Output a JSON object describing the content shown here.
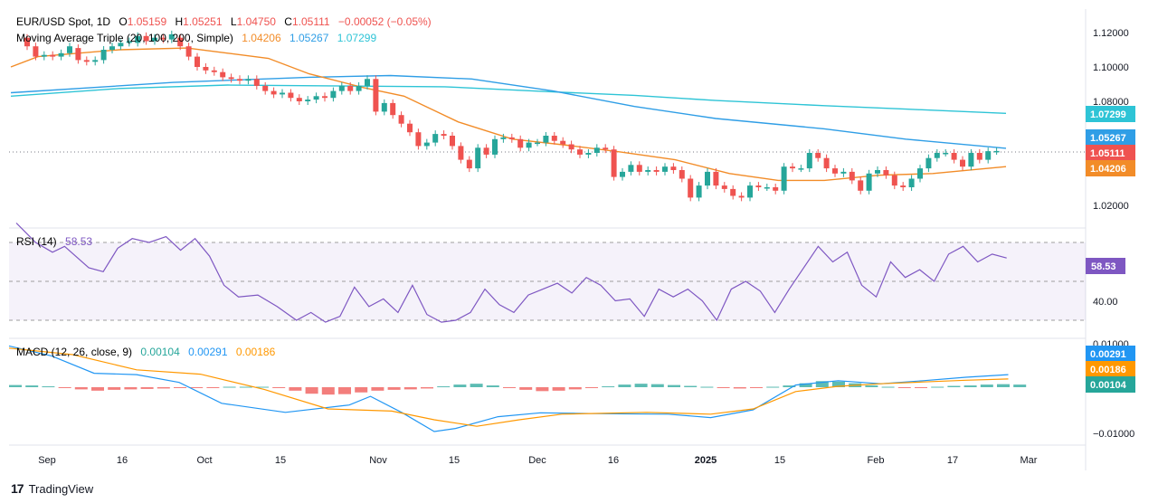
{
  "header": {
    "symbol": "EUR/USD Spot, 1D",
    "o_label": "O",
    "o": "1.05159",
    "h_label": "H",
    "h": "1.05251",
    "l_label": "L",
    "l": "1.04750",
    "c_label": "C",
    "c": "1.05111",
    "change": "−0.00052 (−0.05%)",
    "ma_label": "Moving Average Triple (20, 100, 200, Simple)",
    "ma20": "1.04206",
    "ma100": "1.05267",
    "ma200": "1.07299"
  },
  "rsi": {
    "label": "RSI (14)",
    "value": "58.53",
    "tick": "40.00"
  },
  "macd": {
    "label": "MACD (12, 26, close, 9)",
    "hist": "0.00104",
    "macd": "0.00291",
    "signal": "0.00186",
    "tick_top": "0.01000",
    "tick_bottom": "−0.01000"
  },
  "price_axis": {
    "ticks": [
      "1.12000",
      "1.10000",
      "1.08000",
      "1.02000"
    ],
    "tags": {
      "ma200": "1.07299",
      "ma100": "1.05267",
      "last": "1.05111",
      "ma20": "1.04206"
    }
  },
  "time_axis": {
    "labels": [
      "Sep",
      "16",
      "Oct",
      "15",
      "Nov",
      "15",
      "Dec",
      "16",
      "2025",
      "15",
      "Feb",
      "17",
      "Mar"
    ]
  },
  "footer": {
    "logo": "17",
    "brand": "TradingView"
  },
  "colors": {
    "up": "#26a69a",
    "down": "#ef5350",
    "ma20": "#f28c28",
    "ma100": "#2f9ee6",
    "ma200": "#2ec4d6",
    "rsi": "#7e57c2",
    "macd": "#2196f3",
    "signal": "#ff9800"
  },
  "chart_data": {
    "type": "candlestick",
    "title": "EUR/USD Spot, 1D",
    "ylim": [
      1.01,
      1.125
    ],
    "ma200": [
      [
        0,
        1.083
      ],
      [
        40,
        1.0875
      ],
      [
        80,
        1.0895
      ],
      [
        160,
        1.0885
      ],
      [
        200,
        1.0855
      ],
      [
        230,
        1.0835
      ],
      [
        260,
        1.0805
      ],
      [
        300,
        1.0775
      ],
      [
        330,
        1.0755
      ],
      [
        367,
        1.073
      ]
    ],
    "ma100": [
      [
        0,
        1.085
      ],
      [
        60,
        1.091
      ],
      [
        110,
        1.094
      ],
      [
        140,
        1.095
      ],
      [
        170,
        1.093
      ],
      [
        200,
        1.086
      ],
      [
        230,
        1.077
      ],
      [
        260,
        1.07
      ],
      [
        300,
        1.064
      ],
      [
        330,
        1.058
      ],
      [
        367,
        1.0527
      ]
    ],
    "ma20": [
      [
        0,
        1.1
      ],
      [
        10,
        1.106
      ],
      [
        40,
        1.11
      ],
      [
        65,
        1.111
      ],
      [
        80,
        1.108
      ],
      [
        95,
        1.105
      ],
      [
        110,
        1.096
      ],
      [
        130,
        1.088
      ],
      [
        145,
        1.083
      ],
      [
        165,
        1.068
      ],
      [
        185,
        1.058
      ],
      [
        205,
        1.0545
      ],
      [
        225,
        1.0505
      ],
      [
        245,
        1.046
      ],
      [
        265,
        1.038
      ],
      [
        283,
        1.034
      ],
      [
        300,
        1.034
      ],
      [
        320,
        1.037
      ],
      [
        340,
        1.038
      ],
      [
        367,
        1.042
      ]
    ],
    "rsi": [
      [
        0,
        80
      ],
      [
        8,
        70
      ],
      [
        15,
        65
      ],
      [
        20,
        68
      ],
      [
        30,
        57
      ],
      [
        36,
        55
      ],
      [
        42,
        67
      ],
      [
        48,
        72
      ],
      [
        55,
        70
      ],
      [
        62,
        73
      ],
      [
        68,
        66
      ],
      [
        74,
        72
      ],
      [
        80,
        63
      ],
      [
        86,
        48
      ],
      [
        92,
        42
      ],
      [
        100,
        43
      ],
      [
        108,
        37
      ],
      [
        116,
        30
      ],
      [
        122,
        34
      ],
      [
        128,
        29
      ],
      [
        134,
        32
      ],
      [
        140,
        47
      ],
      [
        146,
        37
      ],
      [
        152,
        41
      ],
      [
        158,
        34
      ],
      [
        164,
        48
      ],
      [
        170,
        33
      ],
      [
        176,
        29
      ],
      [
        182,
        30
      ],
      [
        188,
        34
      ],
      [
        194,
        46
      ],
      [
        200,
        38
      ],
      [
        206,
        34
      ],
      [
        212,
        43
      ],
      [
        218,
        46
      ],
      [
        224,
        49
      ],
      [
        230,
        44
      ],
      [
        236,
        52
      ],
      [
        242,
        48
      ],
      [
        248,
        40
      ],
      [
        254,
        41
      ],
      [
        260,
        32
      ],
      [
        266,
        46
      ],
      [
        272,
        42
      ],
      [
        278,
        46
      ],
      [
        284,
        40
      ],
      [
        290,
        30
      ],
      [
        296,
        46
      ],
      [
        302,
        50
      ],
      [
        308,
        45
      ],
      [
        314,
        34
      ],
      [
        320,
        46
      ],
      [
        326,
        57
      ],
      [
        332,
        68
      ],
      [
        338,
        60
      ],
      [
        344,
        65
      ],
      [
        350,
        48
      ],
      [
        356,
        42
      ],
      [
        362,
        60
      ],
      [
        368,
        52
      ],
      [
        374,
        56
      ],
      [
        380,
        50
      ],
      [
        386,
        64
      ],
      [
        392,
        68
      ],
      [
        398,
        60
      ],
      [
        404,
        64
      ],
      [
        410,
        62
      ]
    ],
    "macd_line": [
      [
        0,
        0.0095
      ],
      [
        20,
        0.0072
      ],
      [
        40,
        0.0032
      ],
      [
        60,
        0.0029
      ],
      [
        80,
        0.0011
      ],
      [
        100,
        -0.0037
      ],
      [
        130,
        -0.0058
      ],
      [
        160,
        -0.0041
      ],
      [
        170,
        -0.0021
      ],
      [
        185,
        -0.0059
      ],
      [
        200,
        -0.0102
      ],
      [
        210,
        -0.0095
      ],
      [
        230,
        -0.0068
      ],
      [
        250,
        -0.0059
      ],
      [
        280,
        -0.0061
      ],
      [
        310,
        -0.0062
      ],
      [
        330,
        -0.007
      ],
      [
        350,
        -0.0052
      ],
      [
        370,
        0.0005
      ],
      [
        390,
        0.0015
      ],
      [
        410,
        0.0008
      ],
      [
        430,
        0.0015
      ],
      [
        450,
        0.0023
      ],
      [
        470,
        0.0029
      ]
    ],
    "signal_line": [
      [
        0,
        0.009
      ],
      [
        30,
        0.0075
      ],
      [
        60,
        0.004
      ],
      [
        90,
        0.003
      ],
      [
        120,
        -0.0005
      ],
      [
        150,
        -0.005
      ],
      [
        180,
        -0.0055
      ],
      [
        200,
        -0.0075
      ],
      [
        220,
        -0.009
      ],
      [
        240,
        -0.0075
      ],
      [
        260,
        -0.0062
      ],
      [
        300,
        -0.0058
      ],
      [
        330,
        -0.0062
      ],
      [
        350,
        -0.005
      ],
      [
        370,
        -0.001
      ],
      [
        390,
        0.0002
      ],
      [
        410,
        0.0008
      ],
      [
        430,
        0.0012
      ],
      [
        450,
        0.0016
      ],
      [
        470,
        0.0019
      ]
    ],
    "histogram": [
      0.0005,
      0.0004,
      0.0002,
      -0.0001,
      -0.0005,
      -0.0008,
      -0.0006,
      -0.0005,
      -0.0004,
      -0.0003,
      -0.0002,
      -0.0001,
      -0.0001,
      0.0001,
      0.0001,
      0.0001,
      -0.0001,
      -0.0008,
      -0.0015,
      -0.0017,
      -0.0016,
      -0.0012,
      -0.0008,
      -0.0006,
      -0.0005,
      -0.0003,
      0.0002,
      0.0006,
      0.0008,
      0.0004,
      -0.0002,
      -0.0006,
      -0.0009,
      -0.0008,
      -0.0005,
      -0.0002,
      0.0002,
      0.0006,
      0.0008,
      0.0007,
      0.0005,
      0.0003,
      0.0001,
      -0.0001,
      -0.0003,
      -0.0002,
      0.0001,
      0.0004,
      0.0009,
      0.0014,
      0.0013,
      0.0009,
      0.0004,
      0.0001,
      -0.0001,
      -0.0001,
      0.0001,
      0.0003,
      0.0004,
      0.0006,
      0.0007,
      0.0006
    ],
    "candles": [
      {
        "x": 0,
        "o": 1.117,
        "c": 1.112
      },
      {
        "x": 1,
        "o": 1.112,
        "c": 1.106
      },
      {
        "x": 2,
        "o": 1.106,
        "c": 1.107
      },
      {
        "x": 3,
        "o": 1.107,
        "c": 1.106
      },
      {
        "x": 4,
        "o": 1.106,
        "c": 1.108
      },
      {
        "x": 5,
        "o": 1.108,
        "c": 1.112
      },
      {
        "x": 6,
        "o": 1.111,
        "c": 1.104
      },
      {
        "x": 7,
        "o": 1.104,
        "c": 1.103
      },
      {
        "x": 8,
        "o": 1.103,
        "c": 1.104
      },
      {
        "x": 9,
        "o": 1.104,
        "c": 1.11
      },
      {
        "x": 10,
        "o": 1.11,
        "c": 1.112
      },
      {
        "x": 11,
        "o": 1.112,
        "c": 1.114
      },
      {
        "x": 12,
        "o": 1.114,
        "c": 1.115
      },
      {
        "x": 13,
        "o": 1.114,
        "c": 1.118
      },
      {
        "x": 14,
        "o": 1.118,
        "c": 1.115
      },
      {
        "x": 15,
        "o": 1.115,
        "c": 1.117
      },
      {
        "x": 16,
        "o": 1.117,
        "c": 1.116
      },
      {
        "x": 17,
        "o": 1.116,
        "c": 1.119
      },
      {
        "x": 18,
        "o": 1.117,
        "c": 1.112
      },
      {
        "x": 19,
        "o": 1.112,
        "c": 1.106
      },
      {
        "x": 20,
        "o": 1.106,
        "c": 1.1
      },
      {
        "x": 21,
        "o": 1.1,
        "c": 1.098
      },
      {
        "x": 22,
        "o": 1.098,
        "c": 1.097
      },
      {
        "x": 23,
        "o": 1.097,
        "c": 1.094
      },
      {
        "x": 24,
        "o": 1.094,
        "c": 1.093
      },
      {
        "x": 25,
        "o": 1.093,
        "c": 1.092
      },
      {
        "x": 26,
        "o": 1.092,
        "c": 1.093
      },
      {
        "x": 27,
        "o": 1.093,
        "c": 1.089
      },
      {
        "x": 28,
        "o": 1.089,
        "c": 1.086
      },
      {
        "x": 29,
        "o": 1.086,
        "c": 1.084
      },
      {
        "x": 30,
        "o": 1.084,
        "c": 1.085
      },
      {
        "x": 31,
        "o": 1.085,
        "c": 1.082
      },
      {
        "x": 32,
        "o": 1.082,
        "c": 1.08
      },
      {
        "x": 33,
        "o": 1.08,
        "c": 1.081
      },
      {
        "x": 34,
        "o": 1.081,
        "c": 1.083
      },
      {
        "x": 35,
        "o": 1.083,
        "c": 1.082
      },
      {
        "x": 36,
        "o": 1.082,
        "c": 1.086
      },
      {
        "x": 37,
        "o": 1.086,
        "c": 1.089
      },
      {
        "x": 38,
        "o": 1.089,
        "c": 1.086
      },
      {
        "x": 39,
        "o": 1.086,
        "c": 1.089
      },
      {
        "x": 40,
        "o": 1.089,
        "c": 1.093
      },
      {
        "x": 41,
        "o": 1.093,
        "c": 1.074
      },
      {
        "x": 42,
        "o": 1.074,
        "c": 1.079
      },
      {
        "x": 43,
        "o": 1.079,
        "c": 1.072
      },
      {
        "x": 44,
        "o": 1.072,
        "c": 1.067
      },
      {
        "x": 45,
        "o": 1.067,
        "c": 1.062
      },
      {
        "x": 46,
        "o": 1.062,
        "c": 1.054
      },
      {
        "x": 47,
        "o": 1.054,
        "c": 1.056
      },
      {
        "x": 48,
        "o": 1.056,
        "c": 1.061
      },
      {
        "x": 49,
        "o": 1.061,
        "c": 1.06
      },
      {
        "x": 50,
        "o": 1.06,
        "c": 1.054
      },
      {
        "x": 51,
        "o": 1.054,
        "c": 1.046
      },
      {
        "x": 52,
        "o": 1.046,
        "c": 1.041
      },
      {
        "x": 53,
        "o": 1.041,
        "c": 1.053
      },
      {
        "x": 54,
        "o": 1.053,
        "c": 1.049
      },
      {
        "x": 55,
        "o": 1.049,
        "c": 1.058
      },
      {
        "x": 56,
        "o": 1.058,
        "c": 1.059
      },
      {
        "x": 57,
        "o": 1.059,
        "c": 1.058
      },
      {
        "x": 58,
        "o": 1.058,
        "c": 1.053
      },
      {
        "x": 59,
        "o": 1.053,
        "c": 1.056
      },
      {
        "x": 60,
        "o": 1.056,
        "c": 1.056
      },
      {
        "x": 61,
        "o": 1.056,
        "c": 1.06
      },
      {
        "x": 62,
        "o": 1.06,
        "c": 1.057
      },
      {
        "x": 63,
        "o": 1.057,
        "c": 1.055
      },
      {
        "x": 64,
        "o": 1.055,
        "c": 1.052
      },
      {
        "x": 65,
        "o": 1.052,
        "c": 1.049
      },
      {
        "x": 66,
        "o": 1.049,
        "c": 1.05
      },
      {
        "x": 67,
        "o": 1.05,
        "c": 1.053
      },
      {
        "x": 68,
        "o": 1.053,
        "c": 1.052
      },
      {
        "x": 69,
        "o": 1.052,
        "c": 1.036
      },
      {
        "x": 70,
        "o": 1.036,
        "c": 1.039
      },
      {
        "x": 71,
        "o": 1.039,
        "c": 1.043
      },
      {
        "x": 72,
        "o": 1.043,
        "c": 1.039
      },
      {
        "x": 73,
        "o": 1.039,
        "c": 1.04
      },
      {
        "x": 74,
        "o": 1.04,
        "c": 1.039
      },
      {
        "x": 75,
        "o": 1.039,
        "c": 1.042
      },
      {
        "x": 76,
        "o": 1.042,
        "c": 1.04
      },
      {
        "x": 77,
        "o": 1.04,
        "c": 1.035
      },
      {
        "x": 78,
        "o": 1.035,
        "c": 1.024
      },
      {
        "x": 79,
        "o": 1.024,
        "c": 1.031
      },
      {
        "x": 80,
        "o": 1.031,
        "c": 1.039
      },
      {
        "x": 81,
        "o": 1.039,
        "c": 1.031
      },
      {
        "x": 82,
        "o": 1.031,
        "c": 1.029
      },
      {
        "x": 83,
        "o": 1.029,
        "c": 1.025
      },
      {
        "x": 84,
        "o": 1.025,
        "c": 1.024
      },
      {
        "x": 85,
        "o": 1.024,
        "c": 1.031
      },
      {
        "x": 86,
        "o": 1.031,
        "c": 1.03
      },
      {
        "x": 87,
        "o": 1.03,
        "c": 1.03
      },
      {
        "x": 88,
        "o": 1.03,
        "c": 1.028
      },
      {
        "x": 89,
        "o": 1.028,
        "c": 1.042
      },
      {
        "x": 90,
        "o": 1.042,
        "c": 1.041
      },
      {
        "x": 91,
        "o": 1.041,
        "c": 1.041
      },
      {
        "x": 92,
        "o": 1.041,
        "c": 1.05
      },
      {
        "x": 93,
        "o": 1.05,
        "c": 1.047
      },
      {
        "x": 94,
        "o": 1.047,
        "c": 1.041
      },
      {
        "x": 95,
        "o": 1.041,
        "c": 1.038
      },
      {
        "x": 96,
        "o": 1.038,
        "c": 1.039
      },
      {
        "x": 97,
        "o": 1.039,
        "c": 1.034
      },
      {
        "x": 98,
        "o": 1.034,
        "c": 1.028
      },
      {
        "x": 99,
        "o": 1.028,
        "c": 1.038
      },
      {
        "x": 100,
        "o": 1.038,
        "c": 1.04
      },
      {
        "x": 101,
        "o": 1.04,
        "c": 1.037
      },
      {
        "x": 102,
        "o": 1.037,
        "c": 1.031
      },
      {
        "x": 103,
        "o": 1.031,
        "c": 1.03
      },
      {
        "x": 104,
        "o": 1.03,
        "c": 1.035
      },
      {
        "x": 105,
        "o": 1.035,
        "c": 1.041
      },
      {
        "x": 106,
        "o": 1.041,
        "c": 1.047
      },
      {
        "x": 107,
        "o": 1.047,
        "c": 1.05
      },
      {
        "x": 108,
        "o": 1.05,
        "c": 1.05
      },
      {
        "x": 109,
        "o": 1.05,
        "c": 1.046
      },
      {
        "x": 110,
        "o": 1.046,
        "c": 1.042
      },
      {
        "x": 111,
        "o": 1.042,
        "c": 1.05
      },
      {
        "x": 112,
        "o": 1.05,
        "c": 1.046
      },
      {
        "x": 113,
        "o": 1.046,
        "c": 1.051
      },
      {
        "x": 114,
        "o": 1.051,
        "c": 1.0511
      }
    ]
  }
}
